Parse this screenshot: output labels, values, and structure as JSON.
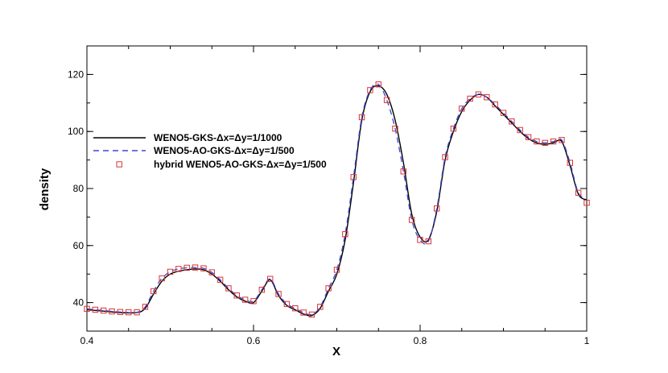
{
  "chart_data": {
    "type": "line",
    "title": "",
    "xlabel": "X",
    "ylabel": "density",
    "xlim": [
      0.4,
      1.0
    ],
    "ylim": [
      30,
      130
    ],
    "xticks": [
      "0.4",
      "0.6",
      "0.8",
      "1"
    ],
    "xtick_values": [
      0.4,
      0.6,
      0.8,
      1.0
    ],
    "yticks": [
      "40",
      "60",
      "80",
      "100",
      "120"
    ],
    "ytick_values": [
      40,
      60,
      80,
      100,
      120
    ],
    "grid": false,
    "legend_position": "left",
    "series": [
      {
        "name": "WENO5-GKS-Δx=Δy=1/1000",
        "style": "solid-line",
        "color": "#000000",
        "x": [
          0.4,
          0.42,
          0.44,
          0.46,
          0.47,
          0.48,
          0.49,
          0.5,
          0.51,
          0.52,
          0.53,
          0.54,
          0.55,
          0.56,
          0.57,
          0.58,
          0.59,
          0.6,
          0.61,
          0.62,
          0.63,
          0.64,
          0.65,
          0.66,
          0.67,
          0.68,
          0.69,
          0.7,
          0.71,
          0.72,
          0.73,
          0.74,
          0.75,
          0.76,
          0.77,
          0.78,
          0.79,
          0.8,
          0.81,
          0.82,
          0.83,
          0.84,
          0.85,
          0.86,
          0.87,
          0.88,
          0.89,
          0.9,
          0.91,
          0.92,
          0.93,
          0.94,
          0.95,
          0.96,
          0.97,
          0.98,
          0.99,
          1.0
        ],
        "y": [
          37.5,
          37,
          36.5,
          36.5,
          38,
          43,
          47.5,
          50,
          51,
          51.5,
          51.8,
          51.5,
          50,
          47.5,
          44.5,
          42,
          40.5,
          40,
          44,
          48,
          42.5,
          39,
          37.5,
          36,
          35.5,
          38,
          44,
          50,
          62,
          82,
          104,
          114,
          116,
          113,
          104,
          89,
          71,
          63,
          62,
          72,
          90,
          100,
          107,
          111,
          113,
          112,
          109,
          106,
          103,
          100,
          97.5,
          96,
          95.5,
          96,
          96.5,
          88,
          78,
          76
        ]
      },
      {
        "name": "WENO5-AO-GKS-Δx=Δy=1/500",
        "style": "dashed-line",
        "color": "#3b47d6",
        "x": [
          0.4,
          0.42,
          0.44,
          0.46,
          0.47,
          0.48,
          0.49,
          0.5,
          0.51,
          0.52,
          0.53,
          0.54,
          0.55,
          0.56,
          0.57,
          0.58,
          0.59,
          0.6,
          0.61,
          0.62,
          0.63,
          0.64,
          0.65,
          0.66,
          0.67,
          0.68,
          0.69,
          0.7,
          0.71,
          0.72,
          0.73,
          0.74,
          0.75,
          0.76,
          0.77,
          0.78,
          0.79,
          0.8,
          0.81,
          0.82,
          0.83,
          0.84,
          0.85,
          0.86,
          0.87,
          0.88,
          0.89,
          0.9,
          0.91,
          0.92,
          0.93,
          0.94,
          0.95,
          0.96,
          0.97,
          0.98,
          0.99,
          1.0
        ],
        "y": [
          37.8,
          37.2,
          36.7,
          36.6,
          38.5,
          44,
          48.5,
          50.8,
          51.8,
          52.2,
          52.3,
          52,
          50.6,
          48,
          45,
          42.5,
          41,
          40.5,
          44.5,
          48.3,
          43,
          39.5,
          38,
          36.5,
          35.8,
          38.5,
          45,
          51.5,
          64,
          84,
          105,
          114.5,
          116.5,
          111,
          101,
          86,
          69,
          62,
          61.5,
          73,
          91,
          101,
          108,
          111.5,
          113,
          112,
          109.5,
          106.5,
          103.5,
          100.5,
          98,
          96.5,
          96,
          96.5,
          97,
          89,
          78.5,
          76.5
        ]
      },
      {
        "name": "hybrid WENO5-AO-GKS-Δx=Δy=1/500",
        "style": "square-markers",
        "color": "#d93434",
        "x": [
          0.4,
          0.41,
          0.42,
          0.43,
          0.44,
          0.45,
          0.46,
          0.47,
          0.48,
          0.49,
          0.5,
          0.51,
          0.52,
          0.53,
          0.54,
          0.55,
          0.56,
          0.57,
          0.58,
          0.59,
          0.6,
          0.61,
          0.62,
          0.63,
          0.64,
          0.65,
          0.66,
          0.67,
          0.68,
          0.69,
          0.7,
          0.71,
          0.72,
          0.73,
          0.74,
          0.75,
          0.76,
          0.77,
          0.78,
          0.79,
          0.8,
          0.81,
          0.82,
          0.83,
          0.84,
          0.85,
          0.86,
          0.87,
          0.88,
          0.89,
          0.9,
          0.91,
          0.92,
          0.93,
          0.94,
          0.95,
          0.96,
          0.97,
          0.98,
          0.99,
          1.0
        ],
        "y": [
          37.8,
          37.5,
          37.2,
          36.9,
          36.7,
          36.6,
          36.6,
          38.5,
          44,
          48.5,
          50.8,
          51.8,
          52.2,
          52.3,
          52,
          50.6,
          48,
          45,
          42.5,
          41,
          40.5,
          44.5,
          48.3,
          43,
          39.5,
          38,
          36.5,
          35.8,
          38.5,
          45,
          51.5,
          64,
          84,
          105,
          114.5,
          116.5,
          111,
          101,
          86,
          69,
          62,
          61.5,
          73,
          91,
          101,
          108,
          111.5,
          113,
          112,
          109.5,
          106.5,
          103.5,
          100.5,
          98,
          96.5,
          96,
          96.5,
          97,
          89,
          78.5,
          75
        ]
      }
    ]
  }
}
